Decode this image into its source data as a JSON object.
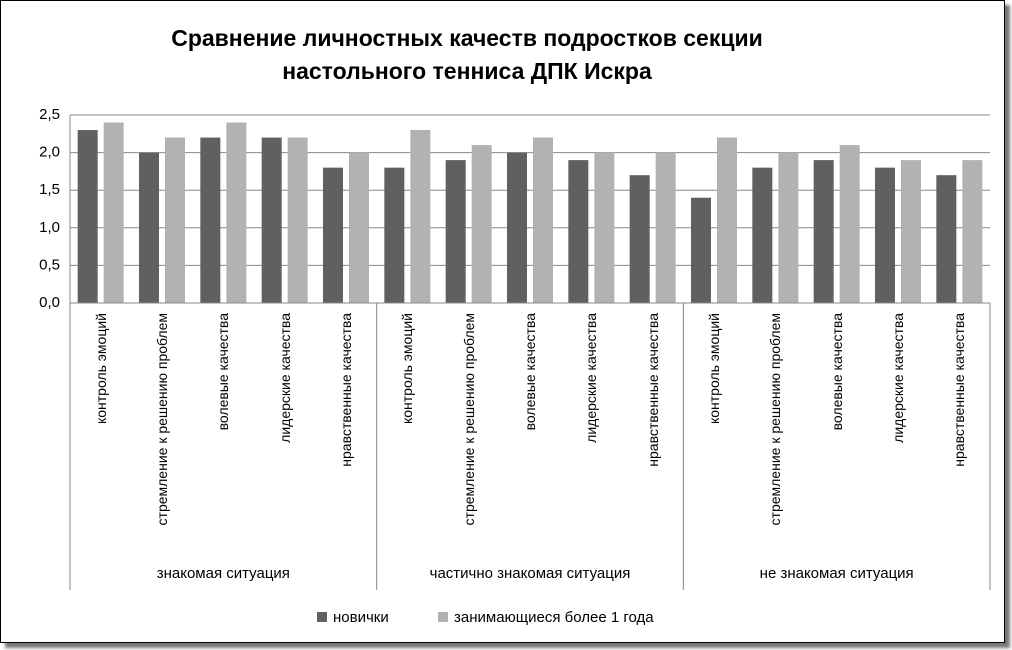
{
  "chart_data": {
    "type": "bar",
    "title": "Сравнение личностных качеств подростков секции\nнастольного тенниса ДПК Искра",
    "groups": [
      {
        "label": "знакомая ситуация",
        "categories": [
          "контроль эмоций",
          "стремление к решению проблем",
          "волевые качества",
          "лидерские качества",
          "нравственные качества"
        ]
      },
      {
        "label": "частично знакомая ситуация",
        "categories": [
          "контроль эмоций",
          "стремление к решению проблем",
          "волевые качества",
          "лидерские качества",
          "нравственные качества"
        ]
      },
      {
        "label": "не знакомая ситуация",
        "categories": [
          "контроль эмоций",
          "стремление к решению проблем",
          "волевые качества",
          "лидерские качества",
          "нравственные качества"
        ]
      }
    ],
    "series": [
      {
        "name": "новички",
        "color": "#606060",
        "values": [
          2.3,
          2.0,
          2.2,
          2.2,
          1.8,
          1.8,
          1.9,
          2.0,
          1.9,
          1.7,
          1.4,
          1.8,
          1.9,
          1.8,
          1.7
        ]
      },
      {
        "name": "занимающиеся более 1 года",
        "color": "#b2b2b2",
        "values": [
          2.4,
          2.2,
          2.4,
          2.2,
          2.0,
          2.3,
          2.1,
          2.2,
          2.0,
          2.0,
          2.2,
          2.0,
          2.1,
          1.9,
          1.9
        ]
      }
    ],
    "ylim": [
      0,
      2.5
    ],
    "yticks": [
      {
        "value": 0,
        "label": "0,0"
      },
      {
        "value": 0.5,
        "label": "0,5"
      },
      {
        "value": 1,
        "label": "1,0"
      },
      {
        "value": 1.5,
        "label": "1,5"
      },
      {
        "value": 2,
        "label": "2,0"
      },
      {
        "value": 2.5,
        "label": "2,5"
      }
    ],
    "grid": true,
    "legend": "bottom"
  }
}
